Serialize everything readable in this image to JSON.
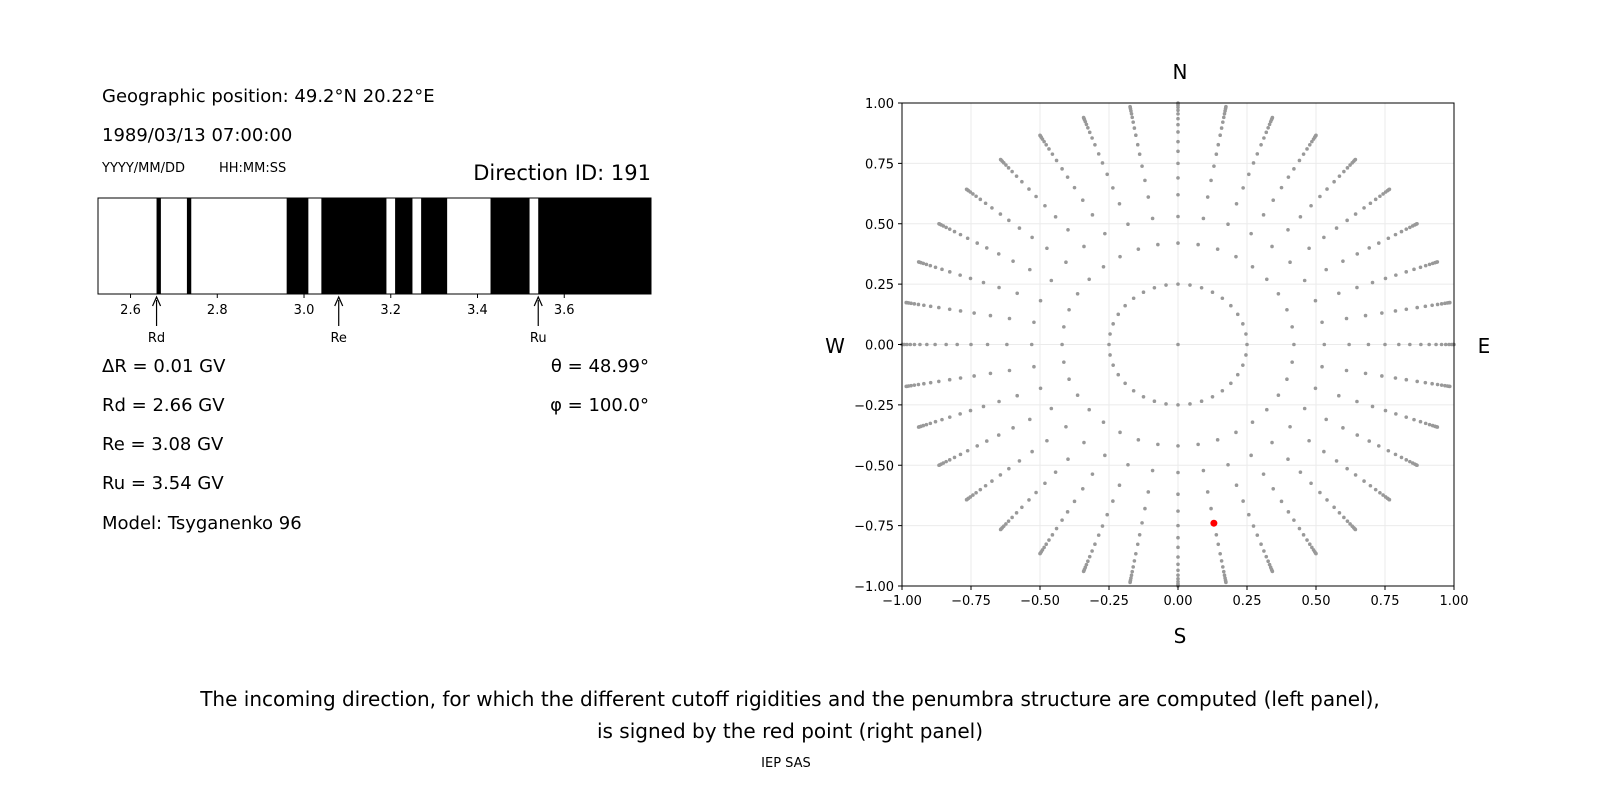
{
  "left_panel": {
    "position_label": "Geographic position: 49.2°N 20.22°E",
    "datetime": "1989/03/13 07:00:00",
    "date_format": "YYYY/MM/DD",
    "time_format": "HH:MM:SS",
    "direction_id": "Direction ID: 191",
    "delta_r": "ΔR = 0.01 GV",
    "rd": "Rd = 2.66 GV",
    "re": "Re = 3.08 GV",
    "ru": "Ru = 3.54 GV",
    "model": "Model: Tsyganenko 96",
    "theta": "θ = 48.99°",
    "phi": "φ = 100.0°"
  },
  "caption": {
    "line1": "The incoming direction, for which the different cutoff rigidities and the penumbra structure are computed (left panel),",
    "line2": "is signed by the red point (right panel)",
    "credit": "IEP SAS"
  },
  "chart_data": [
    {
      "type": "bar",
      "name": "penumbra",
      "xlim": [
        2.525,
        3.8
      ],
      "xticks": [
        "2.6",
        "2.8",
        "3.0",
        "3.2",
        "3.4",
        "3.6"
      ],
      "xtick_values": [
        2.6,
        2.8,
        3.0,
        3.2,
        3.4,
        3.6
      ],
      "black_intervals": [
        [
          2.66,
          2.67
        ],
        [
          2.73,
          2.74
        ],
        [
          2.96,
          3.01
        ],
        [
          3.04,
          3.19
        ],
        [
          3.21,
          3.25
        ],
        [
          3.27,
          3.33
        ],
        [
          3.43,
          3.52
        ],
        [
          3.54,
          3.8
        ]
      ],
      "markers": [
        {
          "label": "Rd",
          "value": 2.66
        },
        {
          "label": "Re",
          "value": 3.08
        },
        {
          "label": "Ru",
          "value": 3.54
        }
      ],
      "colors": {
        "forbidden": "#000000",
        "allowed": "#ffffff"
      }
    },
    {
      "type": "scatter",
      "name": "directions",
      "xlim": [
        -1,
        1
      ],
      "ylim": [
        -1,
        1
      ],
      "xticks": [
        "−1.00",
        "−0.75",
        "−0.50",
        "−0.25",
        "0.00",
        "0.25",
        "0.50",
        "0.75",
        "1.00"
      ],
      "yticks": [
        "−1.00",
        "−0.75",
        "−0.50",
        "−0.25",
        "0.00",
        "0.25",
        "0.50",
        "0.75",
        "1.00"
      ],
      "tick_values": [
        -1,
        -0.75,
        -0.5,
        -0.25,
        0,
        0.25,
        0.5,
        0.75,
        1
      ],
      "grid": true,
      "compass": {
        "north": "N",
        "south": "S",
        "west": "W",
        "east": "E"
      },
      "center_point": [
        0,
        0
      ],
      "ring_radius": 0.25,
      "ring_points": 36,
      "spoke_azimuth_step_deg": 10,
      "spoke_radii": [
        0.42,
        0.53,
        0.62,
        0.69,
        0.75,
        0.8,
        0.84,
        0.88,
        0.91,
        0.935,
        0.955,
        0.97,
        0.982,
        0.991,
        0.997,
        1.0
      ],
      "grid_point_color": "#999999",
      "selected_point": {
        "x": 0.13,
        "y": -0.74,
        "color": "#ff0000"
      }
    }
  ]
}
